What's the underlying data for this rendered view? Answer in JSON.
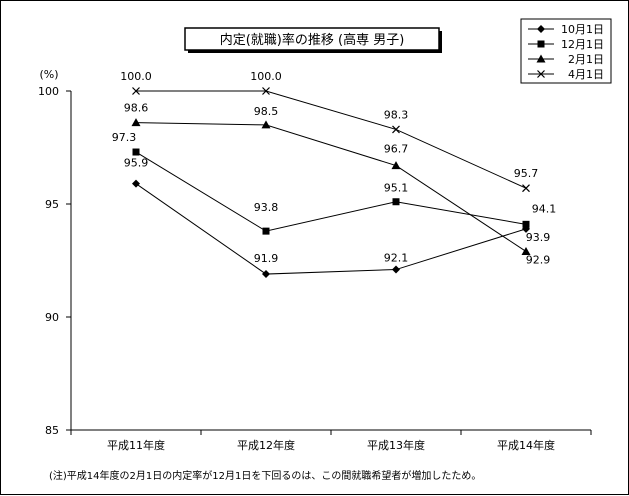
{
  "chart_data": {
    "type": "line",
    "title": "内定(就職)率の推移 (高専 男子)",
    "ylabel": "(%)",
    "ylim": [
      85,
      100
    ],
    "yticks": [
      85,
      90,
      95,
      100
    ],
    "categories": [
      "平成11年度",
      "平成12年度",
      "平成13年度",
      "平成14年度"
    ],
    "legend_position": "top-right",
    "series": [
      {
        "name": "10月1日",
        "marker": "diamond",
        "values": [
          95.9,
          91.9,
          92.1,
          93.9
        ],
        "labels": [
          "95.9",
          "91.9",
          "92.1",
          "93.9"
        ]
      },
      {
        "name": "12月1日",
        "marker": "square",
        "values": [
          97.3,
          93.8,
          95.1,
          94.1
        ],
        "labels": [
          "97.3",
          "93.8",
          "95.1",
          "94.1"
        ]
      },
      {
        "name": "2月1日",
        "marker": "triangle",
        "values": [
          98.6,
          98.5,
          96.7,
          92.9
        ],
        "labels": [
          "98.6",
          "98.5",
          "96.7",
          "92.9"
        ]
      },
      {
        "name": "4月1日",
        "marker": "x",
        "values": [
          100.0,
          100.0,
          98.3,
          95.7
        ],
        "labels": [
          "100.0",
          "100.0",
          "98.3",
          "95.7"
        ]
      }
    ],
    "footnote": "(注)平成14年度の2月1日の内定率が12月1日を下回るのは、この間就職希望者が増加したため。",
    "grid": false,
    "line_color": "#000000"
  }
}
